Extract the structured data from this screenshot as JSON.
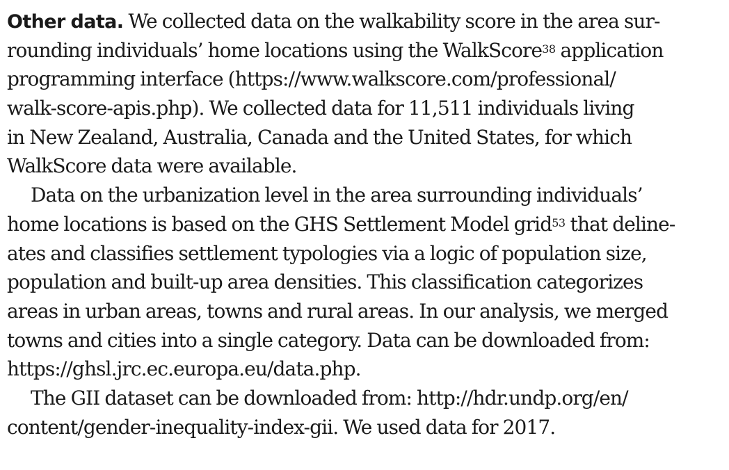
{
  "section": {
    "heading": "Other data.",
    "ref_walkscore": "38",
    "ref_ghs": "53",
    "lines": [
      " We collected data on the walkability score in the area sur-",
      "rounding individuals’ home locations using the WalkScore",
      " application",
      "programming interface (https://www.walkscore.com/professional/",
      "walk-score-apis.php). We collected data for 11,511 individuals living",
      "in New Zealand, Australia, Canada and the United States, for which",
      "WalkScore data were available.",
      "Data on the urbanization level in the area surrounding individuals’",
      "home locations is based on the GHS Settlement Model grid",
      " that deline-",
      "ates and classifies settlement typologies via a logic of population size,",
      "population and built-up area densities. This classification categorizes",
      "areas in urban areas, towns and rural areas. In our analysis, we merged",
      "towns and cities into a single category. Data can be downloaded from:",
      "https://ghsl.jrc.ec.europa.eu/data.php.",
      "The GII dataset can be downloaded from: http://hdr.undp.org/en/",
      "content/gender-inequality-index-gii. We used data for 2017."
    ]
  }
}
